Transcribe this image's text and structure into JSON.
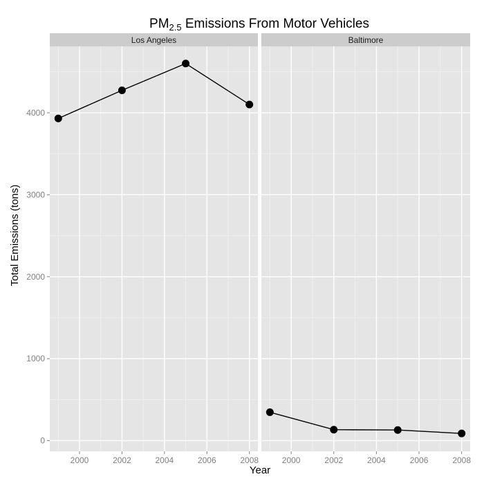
{
  "chart_data": {
    "type": "line",
    "title": "PM2.5 Emissions From Motor Vehicles",
    "title_parts": {
      "prefix": "PM",
      "subscript": "2.5",
      "suffix": " Emissions From Motor Vehicles"
    },
    "xlabel": "Year",
    "ylabel": "Total Emissions (tons)",
    "xlim": [
      1998.6,
      2008.4
    ],
    "ylim": [
      -130,
      4810
    ],
    "x_ticks": [
      2000,
      2002,
      2004,
      2006,
      2008
    ],
    "x_tick_labels": [
      "2000",
      "2002",
      "2004",
      "2006",
      "2008"
    ],
    "y_ticks": [
      0,
      1000,
      2000,
      3000,
      4000
    ],
    "y_tick_labels": [
      "0",
      "1000",
      "2000",
      "3000",
      "4000"
    ],
    "grid": true,
    "panels": [
      {
        "name": "Los Angeles",
        "x": [
          1999,
          2002,
          2005,
          2008
        ],
        "y": [
          3931,
          4274,
          4601,
          4101
        ]
      },
      {
        "name": "Baltimore",
        "x": [
          1999,
          2002,
          2005,
          2008
        ],
        "y": [
          347,
          134,
          130,
          88
        ]
      }
    ],
    "colors": {
      "panel_background": "#e5e5e5",
      "strip_background": "#cccccc",
      "grid_major": "#ffffff",
      "grid_minor": "#f2f2f2",
      "line": "#000000",
      "point": "#000000",
      "axis_text": "#7f7f7f",
      "title_text": "#000000"
    }
  }
}
